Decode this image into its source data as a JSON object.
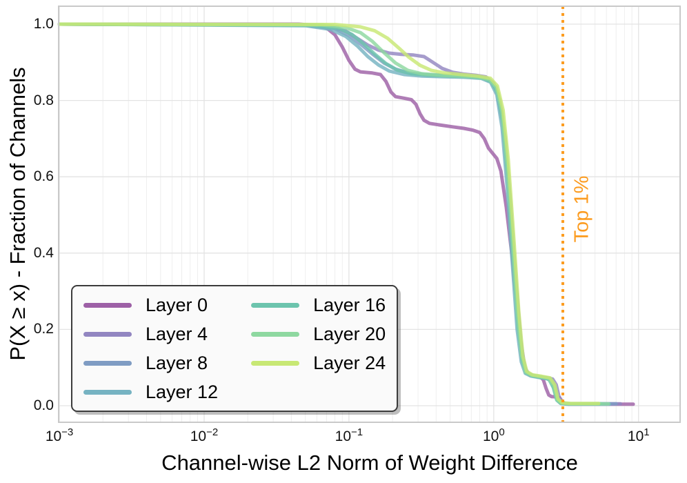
{
  "chart_data": {
    "type": "line",
    "title": "",
    "xlabel": "Channel-wise L2 Norm of Weight Difference",
    "ylabel": "P(X ≥ x) - Fraction of Channels",
    "x_scale": "log",
    "xlim": [
      0.001,
      19.3
    ],
    "ylim": [
      -0.04,
      1.05
    ],
    "grid": true,
    "legend_position": "lower left",
    "legend_columns": 2,
    "x_ticks": [
      {
        "value": 0.001,
        "base": "10",
        "exp": "−3"
      },
      {
        "value": 0.01,
        "base": "10",
        "exp": "−2"
      },
      {
        "value": 0.1,
        "base": "10",
        "exp": "−1"
      },
      {
        "value": 1,
        "base": "10",
        "exp": "0"
      },
      {
        "value": 10,
        "base": "10",
        "exp": "1"
      }
    ],
    "y_ticks": [
      {
        "value": 0.0,
        "label": "0.0"
      },
      {
        "value": 0.2,
        "label": "0.2"
      },
      {
        "value": 0.4,
        "label": "0.4"
      },
      {
        "value": 0.6,
        "label": "0.6"
      },
      {
        "value": 0.8,
        "label": "0.8"
      },
      {
        "value": 1.0,
        "label": "1.0"
      }
    ],
    "annotation": {
      "label": "Top 1%",
      "x": 3.0,
      "color": "#fc9c20",
      "line_style": "dotted"
    },
    "colors": {
      "grid_major": "#e3e3e3",
      "grid_minor": "#eeeeee",
      "plot_border": "#c9c9c9",
      "background": "#ffffff"
    },
    "series": [
      {
        "name": "Layer 0",
        "color": "#9d60a6",
        "points": [
          [
            0.001,
            1.0
          ],
          [
            0.045,
            1.0
          ],
          [
            0.06,
            0.997
          ],
          [
            0.07,
            0.99
          ],
          [
            0.08,
            0.972
          ],
          [
            0.09,
            0.94
          ],
          [
            0.1,
            0.905
          ],
          [
            0.11,
            0.882
          ],
          [
            0.12,
            0.875
          ],
          [
            0.145,
            0.872
          ],
          [
            0.165,
            0.868
          ],
          [
            0.18,
            0.85
          ],
          [
            0.195,
            0.822
          ],
          [
            0.21,
            0.81
          ],
          [
            0.24,
            0.806
          ],
          [
            0.27,
            0.802
          ],
          [
            0.29,
            0.79
          ],
          [
            0.31,
            0.765
          ],
          [
            0.33,
            0.748
          ],
          [
            0.36,
            0.74
          ],
          [
            0.42,
            0.736
          ],
          [
            0.52,
            0.731
          ],
          [
            0.62,
            0.727
          ],
          [
            0.72,
            0.722
          ],
          [
            0.8,
            0.716
          ],
          [
            0.86,
            0.7
          ],
          [
            0.92,
            0.675
          ],
          [
            0.98,
            0.662
          ],
          [
            1.05,
            0.648
          ],
          [
            1.12,
            0.615
          ],
          [
            1.22,
            0.52
          ],
          [
            1.35,
            0.38
          ],
          [
            1.48,
            0.22
          ],
          [
            1.58,
            0.125
          ],
          [
            1.68,
            0.088
          ],
          [
            1.78,
            0.08
          ],
          [
            1.95,
            0.077
          ],
          [
            2.1,
            0.075
          ],
          [
            2.2,
            0.068
          ],
          [
            2.3,
            0.045
          ],
          [
            2.4,
            0.028
          ],
          [
            2.5,
            0.024
          ],
          [
            2.7,
            0.023
          ],
          [
            2.85,
            0.021
          ],
          [
            2.95,
            0.012
          ],
          [
            3.1,
            0.006
          ],
          [
            3.3,
            0.004
          ],
          [
            4.0,
            0.004
          ],
          [
            6.0,
            0.004
          ],
          [
            9.2,
            0.004
          ]
        ]
      },
      {
        "name": "Layer 4",
        "color": "#9286c1",
        "points": [
          [
            0.001,
            1.0
          ],
          [
            0.05,
            0.998
          ],
          [
            0.075,
            0.992
          ],
          [
            0.095,
            0.982
          ],
          [
            0.115,
            0.962
          ],
          [
            0.135,
            0.945
          ],
          [
            0.16,
            0.932
          ],
          [
            0.19,
            0.924
          ],
          [
            0.23,
            0.921
          ],
          [
            0.28,
            0.919
          ],
          [
            0.33,
            0.915
          ],
          [
            0.38,
            0.9
          ],
          [
            0.44,
            0.884
          ],
          [
            0.52,
            0.874
          ],
          [
            0.62,
            0.869
          ],
          [
            0.75,
            0.866
          ],
          [
            0.88,
            0.862
          ],
          [
            1.0,
            0.845
          ],
          [
            1.1,
            0.8
          ],
          [
            1.2,
            0.7
          ],
          [
            1.3,
            0.54
          ],
          [
            1.42,
            0.33
          ],
          [
            1.54,
            0.17
          ],
          [
            1.64,
            0.1
          ],
          [
            1.74,
            0.084
          ],
          [
            1.9,
            0.079
          ],
          [
            2.1,
            0.076
          ],
          [
            2.35,
            0.073
          ],
          [
            2.55,
            0.07
          ],
          [
            2.7,
            0.055
          ],
          [
            2.82,
            0.025
          ],
          [
            2.95,
            0.01
          ],
          [
            3.1,
            0.006
          ],
          [
            3.5,
            0.005
          ],
          [
            5.0,
            0.005
          ],
          [
            7.5,
            0.005
          ]
        ]
      },
      {
        "name": "Layer 8",
        "color": "#7f9cc3",
        "points": [
          [
            0.001,
            1.0
          ],
          [
            0.05,
            0.997
          ],
          [
            0.08,
            0.988
          ],
          [
            0.1,
            0.97
          ],
          [
            0.12,
            0.948
          ],
          [
            0.145,
            0.922
          ],
          [
            0.175,
            0.898
          ],
          [
            0.21,
            0.882
          ],
          [
            0.26,
            0.872
          ],
          [
            0.33,
            0.868
          ],
          [
            0.45,
            0.866
          ],
          [
            0.62,
            0.864
          ],
          [
            0.8,
            0.861
          ],
          [
            0.95,
            0.852
          ],
          [
            1.05,
            0.825
          ],
          [
            1.15,
            0.745
          ],
          [
            1.25,
            0.6
          ],
          [
            1.35,
            0.42
          ],
          [
            1.47,
            0.23
          ],
          [
            1.57,
            0.125
          ],
          [
            1.67,
            0.088
          ],
          [
            1.82,
            0.08
          ],
          [
            2.05,
            0.076
          ],
          [
            2.3,
            0.073
          ],
          [
            2.5,
            0.07
          ],
          [
            2.65,
            0.05
          ],
          [
            2.78,
            0.018
          ],
          [
            2.92,
            0.008
          ],
          [
            3.2,
            0.005
          ],
          [
            4.5,
            0.005
          ],
          [
            7.0,
            0.005
          ]
        ]
      },
      {
        "name": "Layer 12",
        "color": "#76b3c2",
        "points": [
          [
            0.001,
            1.0
          ],
          [
            0.05,
            0.996
          ],
          [
            0.075,
            0.986
          ],
          [
            0.095,
            0.968
          ],
          [
            0.115,
            0.942
          ],
          [
            0.135,
            0.915
          ],
          [
            0.16,
            0.893
          ],
          [
            0.19,
            0.877
          ],
          [
            0.24,
            0.868
          ],
          [
            0.32,
            0.864
          ],
          [
            0.45,
            0.862
          ],
          [
            0.62,
            0.861
          ],
          [
            0.82,
            0.858
          ],
          [
            0.95,
            0.848
          ],
          [
            1.05,
            0.815
          ],
          [
            1.14,
            0.73
          ],
          [
            1.24,
            0.57
          ],
          [
            1.34,
            0.38
          ],
          [
            1.45,
            0.2
          ],
          [
            1.55,
            0.115
          ],
          [
            1.65,
            0.085
          ],
          [
            1.8,
            0.078
          ],
          [
            2.05,
            0.074
          ],
          [
            2.3,
            0.071
          ],
          [
            2.5,
            0.066
          ],
          [
            2.62,
            0.042
          ],
          [
            2.75,
            0.014
          ],
          [
            2.9,
            0.006
          ],
          [
            3.2,
            0.004
          ],
          [
            4.2,
            0.004
          ],
          [
            6.3,
            0.004
          ]
        ]
      },
      {
        "name": "Layer 16",
        "color": "#6cc4ad",
        "points": [
          [
            0.001,
            1.0
          ],
          [
            0.055,
            0.997
          ],
          [
            0.085,
            0.989
          ],
          [
            0.105,
            0.973
          ],
          [
            0.125,
            0.95
          ],
          [
            0.15,
            0.922
          ],
          [
            0.18,
            0.897
          ],
          [
            0.215,
            0.88
          ],
          [
            0.27,
            0.87
          ],
          [
            0.36,
            0.866
          ],
          [
            0.5,
            0.864
          ],
          [
            0.68,
            0.862
          ],
          [
            0.85,
            0.858
          ],
          [
            0.97,
            0.848
          ],
          [
            1.07,
            0.818
          ],
          [
            1.16,
            0.74
          ],
          [
            1.26,
            0.585
          ],
          [
            1.36,
            0.395
          ],
          [
            1.47,
            0.21
          ],
          [
            1.57,
            0.12
          ],
          [
            1.67,
            0.086
          ],
          [
            1.85,
            0.078
          ],
          [
            2.15,
            0.074
          ],
          [
            2.4,
            0.07
          ],
          [
            2.58,
            0.048
          ],
          [
            2.72,
            0.015
          ],
          [
            2.9,
            0.006
          ],
          [
            3.3,
            0.005
          ],
          [
            4.0,
            0.005
          ],
          [
            5.5,
            0.005
          ]
        ]
      },
      {
        "name": "Layer 20",
        "color": "#8ed8a0",
        "points": [
          [
            0.001,
            1.0
          ],
          [
            0.065,
            0.998
          ],
          [
            0.095,
            0.991
          ],
          [
            0.12,
            0.978
          ],
          [
            0.145,
            0.955
          ],
          [
            0.175,
            0.925
          ],
          [
            0.21,
            0.898
          ],
          [
            0.255,
            0.879
          ],
          [
            0.32,
            0.87
          ],
          [
            0.44,
            0.866
          ],
          [
            0.6,
            0.864
          ],
          [
            0.78,
            0.861
          ],
          [
            0.93,
            0.855
          ],
          [
            1.04,
            0.835
          ],
          [
            1.14,
            0.77
          ],
          [
            1.24,
            0.63
          ],
          [
            1.34,
            0.45
          ],
          [
            1.46,
            0.24
          ],
          [
            1.56,
            0.13
          ],
          [
            1.66,
            0.088
          ],
          [
            1.82,
            0.08
          ],
          [
            2.1,
            0.076
          ],
          [
            2.4,
            0.072
          ],
          [
            2.6,
            0.052
          ],
          [
            2.74,
            0.016
          ],
          [
            2.92,
            0.007
          ],
          [
            3.3,
            0.005
          ],
          [
            4.4,
            0.005
          ],
          [
            6.2,
            0.005
          ]
        ]
      },
      {
        "name": "Layer 24",
        "color": "#c8e874",
        "points": [
          [
            0.001,
            1.0
          ],
          [
            0.08,
            0.999
          ],
          [
            0.12,
            0.993
          ],
          [
            0.15,
            0.983
          ],
          [
            0.185,
            0.963
          ],
          [
            0.22,
            0.938
          ],
          [
            0.26,
            0.913
          ],
          [
            0.31,
            0.892
          ],
          [
            0.37,
            0.879
          ],
          [
            0.46,
            0.872
          ],
          [
            0.6,
            0.868
          ],
          [
            0.78,
            0.864
          ],
          [
            0.95,
            0.858
          ],
          [
            1.06,
            0.838
          ],
          [
            1.16,
            0.775
          ],
          [
            1.26,
            0.645
          ],
          [
            1.37,
            0.45
          ],
          [
            1.49,
            0.245
          ],
          [
            1.59,
            0.13
          ],
          [
            1.69,
            0.09
          ],
          [
            1.85,
            0.081
          ],
          [
            2.15,
            0.077
          ],
          [
            2.45,
            0.073
          ],
          [
            2.64,
            0.055
          ],
          [
            2.78,
            0.018
          ],
          [
            2.97,
            0.008
          ],
          [
            3.4,
            0.006
          ],
          [
            5.3,
            0.006
          ]
        ]
      }
    ]
  }
}
